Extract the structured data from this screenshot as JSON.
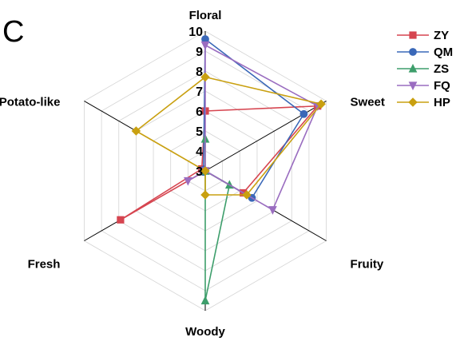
{
  "panel_label": "C",
  "chart_data": {
    "type": "radar",
    "axes": [
      "Floral",
      "Sweet",
      "Fruity",
      "Woody",
      "Fresh",
      "Potato-like"
    ],
    "rlim": [
      3,
      10
    ],
    "ticks": [
      "3",
      "4",
      "5",
      "6",
      "7",
      "8",
      "9",
      "10"
    ],
    "grid": true,
    "legend_position": "top-right",
    "series": [
      {
        "name": "ZY",
        "color": "#d64550",
        "marker": "square",
        "values": [
          6.0,
          9.5,
          5.2,
          3.0,
          7.9,
          3.2
        ]
      },
      {
        "name": "QM",
        "color": "#3a68b8",
        "marker": "circle",
        "values": [
          9.6,
          8.7,
          5.7,
          3.0,
          3.1,
          3.1
        ]
      },
      {
        "name": "ZS",
        "color": "#3d9e6b",
        "marker": "triangle-up",
        "values": [
          4.6,
          3.0,
          4.4,
          9.5,
          3.0,
          3.0
        ]
      },
      {
        "name": "FQ",
        "color": "#9a6dc0",
        "marker": "triangle-down",
        "values": [
          9.3,
          9.5,
          6.9,
          3.0,
          4.0,
          3.0
        ]
      },
      {
        "name": "HP",
        "color": "#c9a010",
        "marker": "diamond",
        "values": [
          7.7,
          9.7,
          5.4,
          4.2,
          3.0,
          7.0
        ]
      }
    ]
  }
}
